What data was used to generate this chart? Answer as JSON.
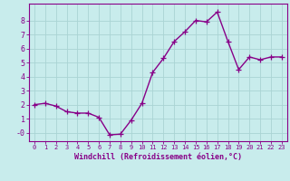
{
  "x": [
    0,
    1,
    2,
    3,
    4,
    5,
    6,
    7,
    8,
    9,
    10,
    11,
    12,
    13,
    14,
    15,
    16,
    17,
    18,
    19,
    20,
    21,
    22,
    23
  ],
  "y": [
    2.0,
    2.1,
    1.9,
    1.5,
    1.4,
    1.4,
    1.1,
    -0.15,
    -0.1,
    0.9,
    2.1,
    4.3,
    5.3,
    6.5,
    7.2,
    8.0,
    7.9,
    8.6,
    6.5,
    4.5,
    5.4,
    5.2,
    5.4,
    5.4
  ],
  "line_color": "#880088",
  "marker_color": "#880088",
  "bg_color": "#c8ecec",
  "grid_color": "#aad4d4",
  "axis_color": "#880088",
  "xlabel": "Windchill (Refroidissement éolien,°C)",
  "xlim": [
    -0.5,
    23.5
  ],
  "ylim": [
    -0.6,
    9.2
  ],
  "yticks": [
    0,
    1,
    2,
    3,
    4,
    5,
    6,
    7,
    8
  ],
  "ytick_labels": [
    "-0",
    "1",
    "2",
    "3",
    "4",
    "5",
    "6",
    "7",
    "8"
  ],
  "xticks": [
    0,
    1,
    2,
    3,
    4,
    5,
    6,
    7,
    8,
    9,
    10,
    11,
    12,
    13,
    14,
    15,
    16,
    17,
    18,
    19,
    20,
    21,
    22,
    23
  ],
  "font_color": "#880088",
  "xtick_fontsize": 5.0,
  "ytick_fontsize": 6.0,
  "xlabel_fontsize": 6.0,
  "marker_size": 4.0,
  "linewidth": 1.0
}
